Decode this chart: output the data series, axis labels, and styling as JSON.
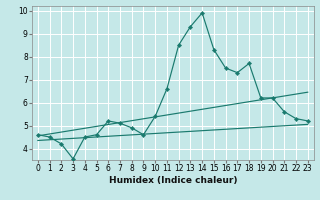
{
  "xlabel": "Humidex (Indice chaleur)",
  "ylabel": "",
  "background_color": "#c5e8e8",
  "grid_color": "#ffffff",
  "line_color": "#1a7a6e",
  "xlim": [
    -0.5,
    23.5
  ],
  "ylim": [
    3.5,
    10.2
  ],
  "xticks": [
    0,
    1,
    2,
    3,
    4,
    5,
    6,
    7,
    8,
    9,
    10,
    11,
    12,
    13,
    14,
    15,
    16,
    17,
    18,
    19,
    20,
    21,
    22,
    23
  ],
  "yticks": [
    4,
    5,
    6,
    7,
    8,
    9,
    10
  ],
  "line1_x": [
    0,
    1,
    2,
    3,
    4,
    5,
    6,
    7,
    8,
    9,
    10,
    11,
    12,
    13,
    14,
    15,
    16,
    17,
    18,
    19,
    20,
    21,
    22,
    23
  ],
  "line1_y": [
    4.6,
    4.5,
    4.2,
    3.55,
    4.5,
    4.6,
    5.2,
    5.1,
    4.9,
    4.6,
    5.4,
    6.6,
    8.5,
    9.3,
    9.9,
    8.3,
    7.5,
    7.3,
    7.7,
    6.2,
    6.2,
    5.6,
    5.3,
    5.2
  ],
  "line2_x": [
    0,
    23
  ],
  "line2_y": [
    4.35,
    5.05
  ],
  "line3_x": [
    0,
    23
  ],
  "line3_y": [
    4.55,
    6.45
  ],
  "font_size": 5.5,
  "xlabel_fontsize": 6.5
}
